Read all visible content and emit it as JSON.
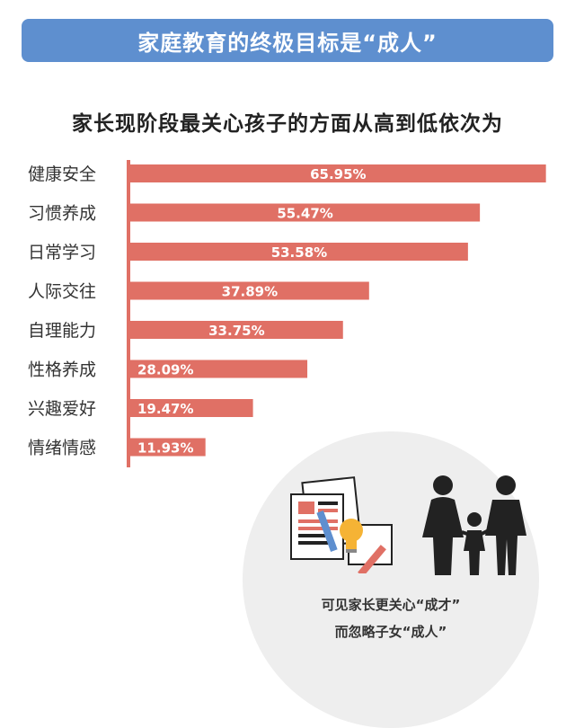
{
  "banner": {
    "title": "家庭教育的终极目标是“成人”"
  },
  "subtitle": "家长现阶段最关心孩子的方面从高到低依次为",
  "chart_data": {
    "type": "bar",
    "orientation": "horizontal",
    "categories": [
      "健康安全",
      "习惯养成",
      "日常学习",
      "人际交往",
      "自理能力",
      "性格养成",
      "兴趣爱好",
      "情绪情感"
    ],
    "values": [
      65.95,
      55.47,
      53.58,
      37.89,
      33.75,
      28.09,
      19.47,
      11.93
    ],
    "value_labels": [
      "65.95%",
      "55.47%",
      "53.58%",
      "37.89%",
      "33.75%",
      "28.09%",
      "19.47%",
      "11.93%"
    ],
    "xlim": [
      0,
      66
    ],
    "bar_color": "#e07065",
    "axis_color": "#e07065"
  },
  "caption": {
    "line1": "可见家长更关心“成才”",
    "line2": "而忽略子女“成人”"
  },
  "colors": {
    "banner": "#5e8fcf",
    "circle": "#eeeeee",
    "figure": "#222222",
    "bulb": "#f5b335"
  },
  "icons": [
    "documents-pencil-icon",
    "lightbulb-icon",
    "family-icon"
  ]
}
